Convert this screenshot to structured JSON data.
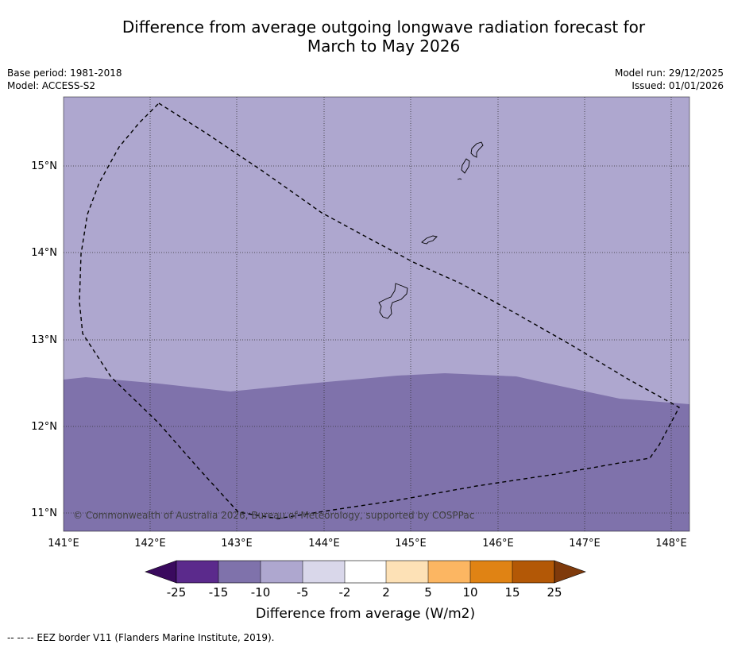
{
  "title_line1": "Difference from average outgoing longwave radiation forecast for",
  "title_line2": "March to May 2026",
  "base_period": "Base period: 1981-2018",
  "model": "Model: ACCESS-S2",
  "model_run": "Model run: 29/12/2025",
  "issued": "Issued: 01/01/2026",
  "copyright": "© Commonwealth of Australia 2026, Bureau of Meteorology, supported by COSPPac",
  "lon_labels": [
    "141°E",
    "142°E",
    "143°E",
    "144°E",
    "145°E",
    "146°E",
    "147°E",
    "148°E"
  ],
  "lat_labels": [
    "15°N",
    "14°N",
    "13°N",
    "12°N",
    "11°N"
  ],
  "colorbar": {
    "label": "Difference from average (W/m2)",
    "ticks": [
      "-25",
      "-15",
      "-10",
      "-5",
      "-2",
      "2",
      "5",
      "10",
      "15",
      "25"
    ],
    "colors": {
      "below_min": "#3a0a5e",
      "c1": "#5b2a8c",
      "c2": "#7f72ab",
      "c3": "#aea7cf",
      "c4": "#d9d7ea",
      "c5": "#ffffff",
      "c6": "#fde1b6",
      "c7": "#fcb662",
      "c8": "#e08314",
      "c9": "#b35806",
      "above_max": "#7f3a0b"
    }
  },
  "fields": {
    "northern_region_category": "-5 to -10",
    "southern_region_category": "-10 to -15"
  },
  "footnote": "--  --  -- EEZ border V11 (Flanders Marine Institute, 2019)."
}
